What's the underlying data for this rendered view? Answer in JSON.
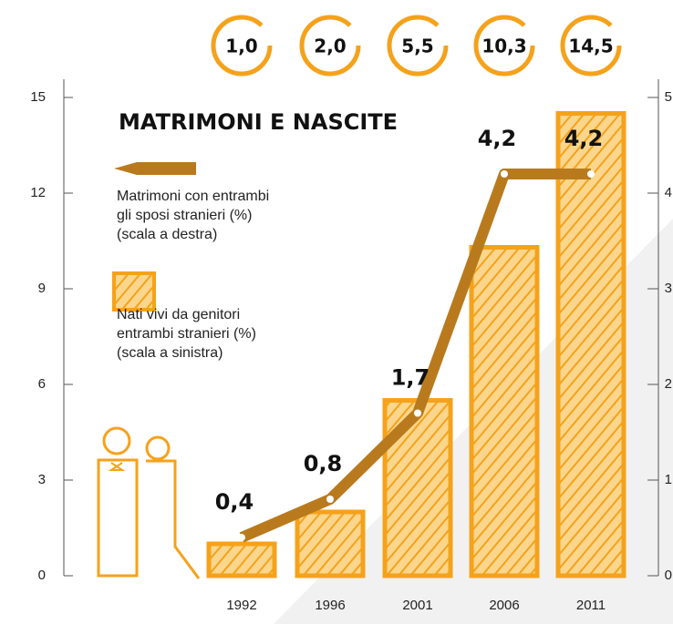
{
  "chart_data": {
    "type": "bar-line",
    "title": "MATRIMONI E NASCITE",
    "categories": [
      "1992",
      "1996",
      "2001",
      "2006",
      "2011"
    ],
    "series": [
      {
        "name": "Nati vivi da genitori entrambi stranieri (%) (scala a sinistra)",
        "type": "bar",
        "color": "#f5a21b",
        "values": [
          1.0,
          2.0,
          5.5,
          10.3,
          14.5
        ],
        "value_labels": [
          "1,0",
          "2,0",
          "5,5",
          "10,3",
          "14,5"
        ]
      },
      {
        "name": "Matrimoni con entrambi gli sposi stranieri (%) (scala a destra)",
        "type": "line",
        "axis": "y2",
        "color": "#b97a1e",
        "values": [
          0.4,
          0.8,
          1.7,
          4.2,
          4.2
        ],
        "value_labels": [
          "0,4",
          "0,8",
          "1,7",
          "4,2",
          "4,2"
        ]
      }
    ],
    "ylim": [
      0,
      15
    ],
    "yticks": [
      0,
      3,
      6,
      9,
      12,
      15
    ],
    "y2lim": [
      0,
      5
    ],
    "y2ticks": [
      0,
      1,
      2,
      3,
      4,
      5
    ]
  }
}
